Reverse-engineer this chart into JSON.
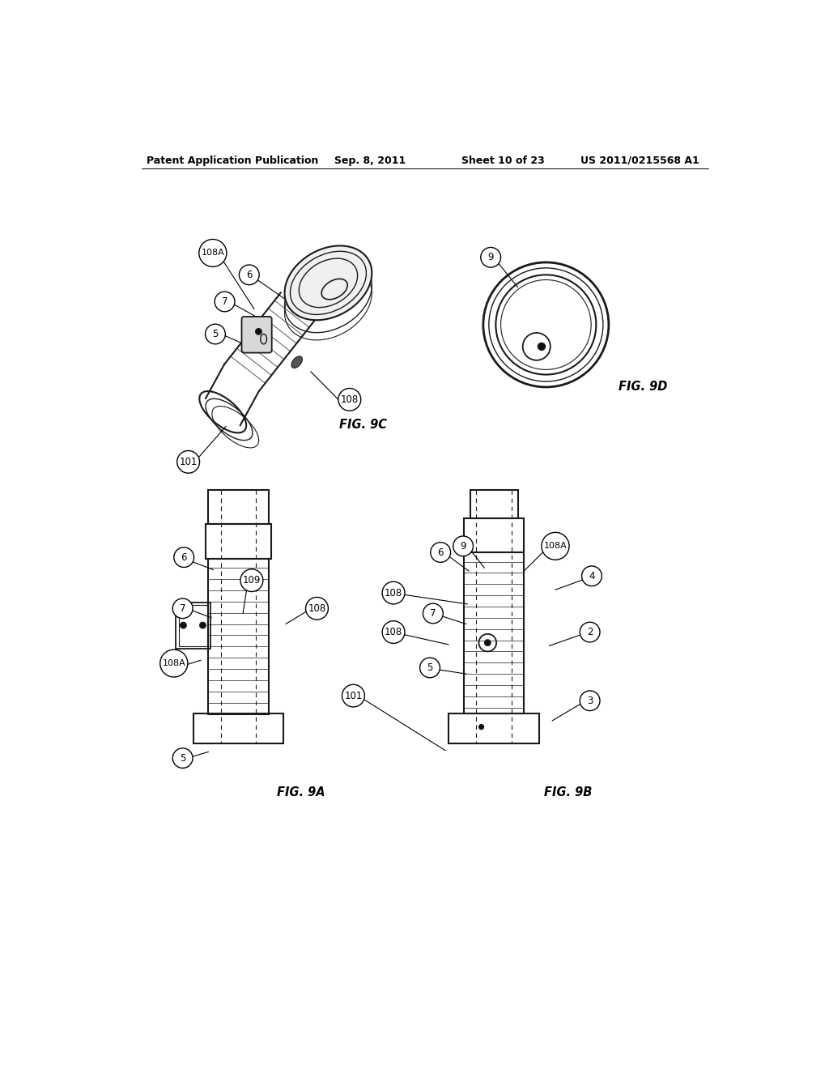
{
  "background_color": "#ffffff",
  "header_left": "Patent Application Publication",
  "header_mid": "Sep. 8, 2011",
  "header_right1": "Sheet 10 of 23",
  "header_right2": "US 2011/0215568 A1",
  "fig9c_label": "FIG. 9C",
  "fig9d_label": "FIG. 9D",
  "fig9a_label": "FIG. 9A",
  "fig9b_label": "FIG. 9B",
  "text_color": "#000000",
  "line_color": "#000000",
  "draw_color": "#1a1a1a"
}
